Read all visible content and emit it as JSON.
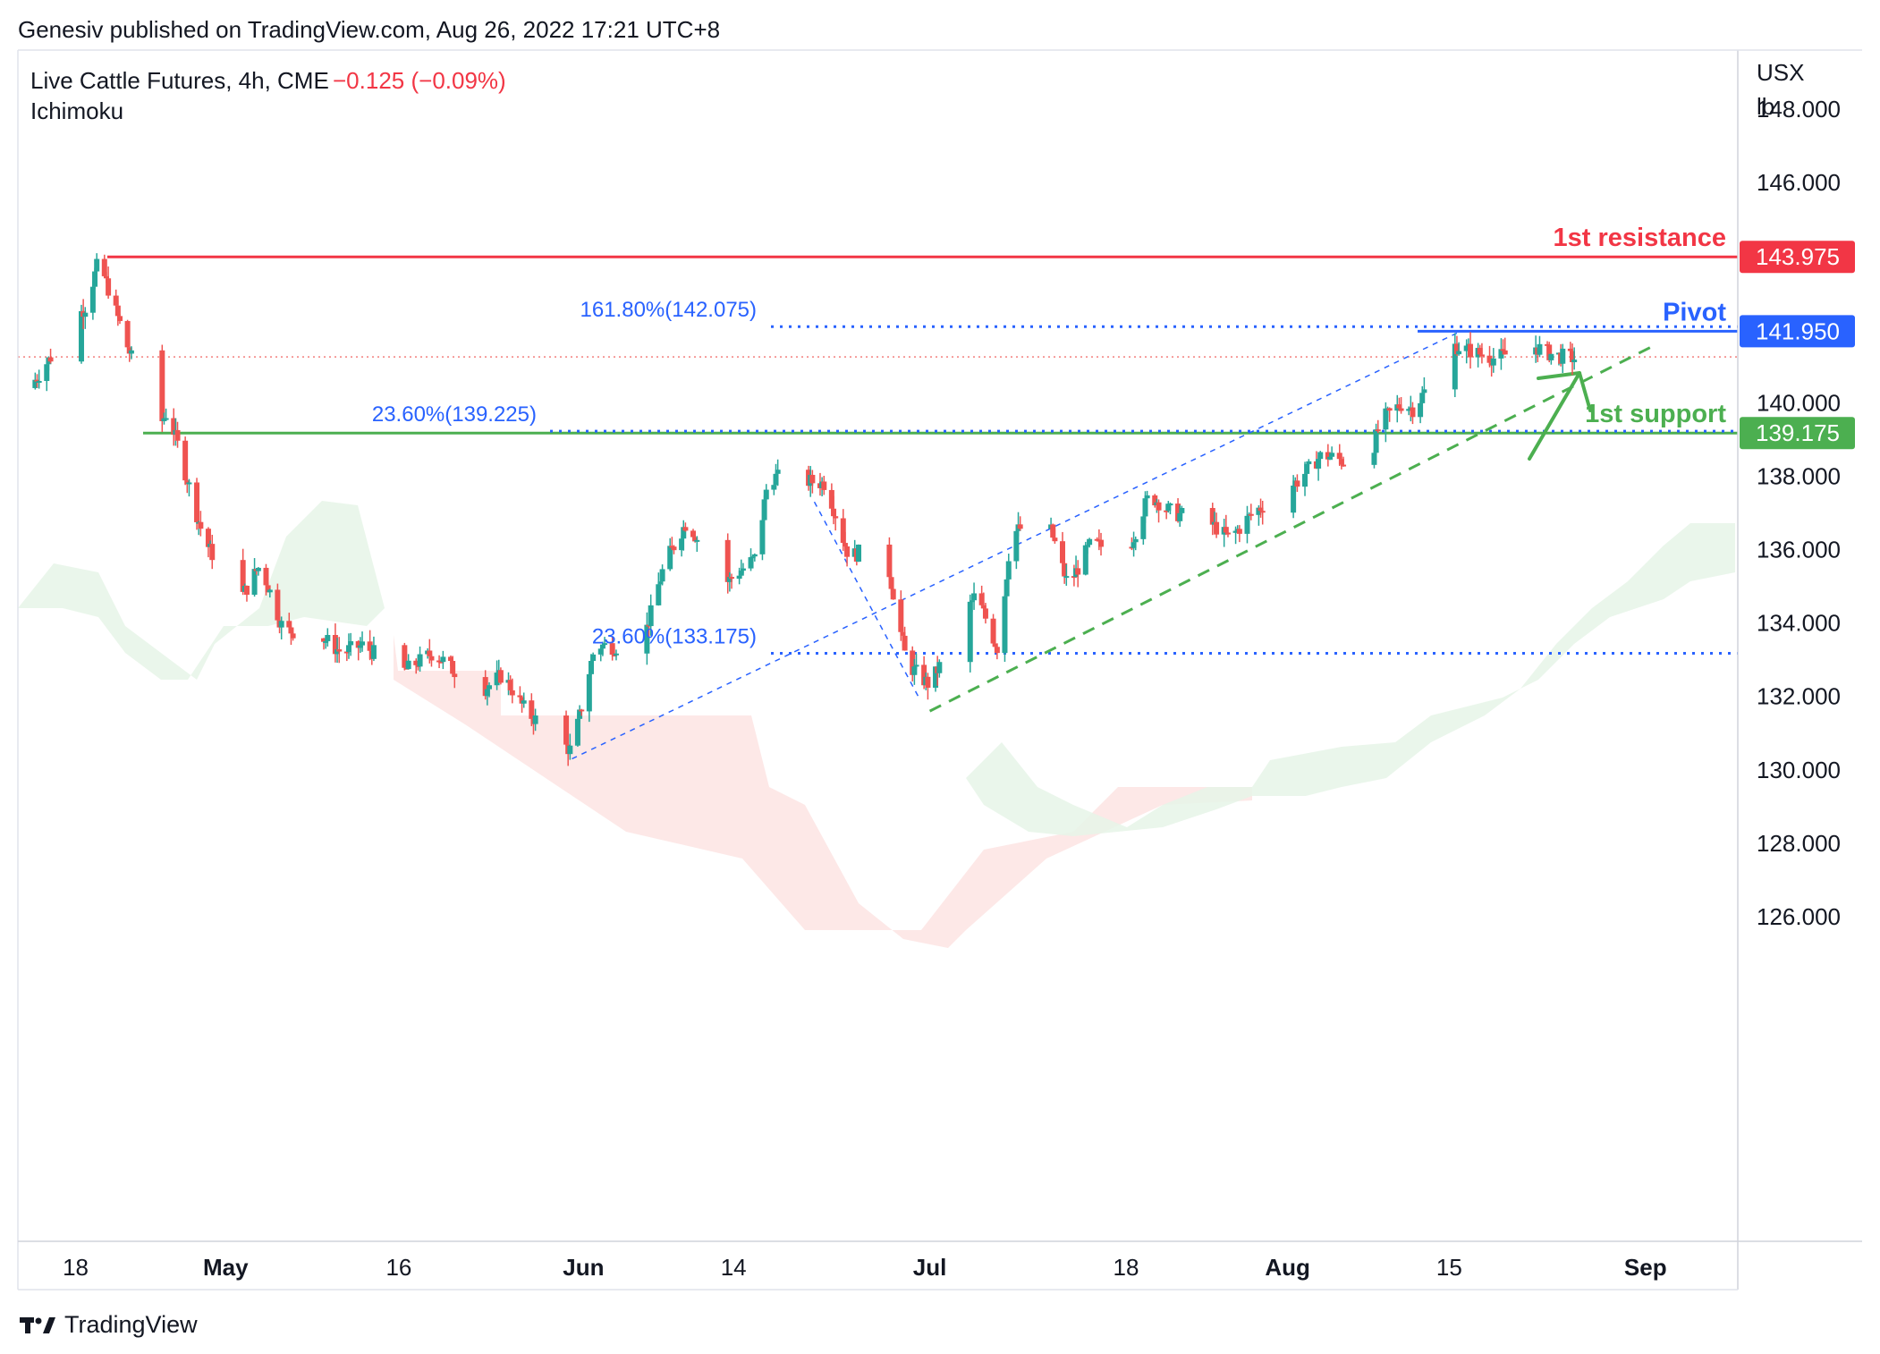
{
  "header": {
    "publisher": "Genesiv published on TradingView.com, Aug 26, 2022 17:21 UTC+8",
    "symbol": "Live Cattle Futures, 4h, CME",
    "change": "−0.125 (−0.09%)",
    "indicator": "Ichimoku"
  },
  "axis": {
    "unit_top": "USX",
    "unit_bottom": "lb",
    "y_ticks": [
      "148.000",
      "146.000",
      "140.000",
      "138.000",
      "136.000",
      "134.000",
      "132.000",
      "130.000",
      "128.000",
      "126.000"
    ],
    "x_ticks": [
      "18",
      "May",
      "16",
      "Jun",
      "14",
      "Jul",
      "18",
      "Aug",
      "15",
      "Sep"
    ]
  },
  "levels": {
    "resistance": {
      "label": "1st resistance",
      "value": "143.975",
      "color": "#f23645"
    },
    "pivot": {
      "label": "Pivot",
      "value": "141.950",
      "color": "#2962ff"
    },
    "support": {
      "label": "1st support",
      "value": "139.175",
      "color": "#4caf50"
    }
  },
  "fib": {
    "f1618": "161.80%(142.075)",
    "f236": "23.60%(139.225)",
    "f2360": "23.60%(133.175)"
  },
  "footer": {
    "brand": "TradingView"
  },
  "chart_data": {
    "type": "candlestick",
    "x_range": [
      "2022-04-13",
      "2022-09-09"
    ],
    "ylim": [
      125.5,
      150.0
    ],
    "colors": {
      "up": "#26a69a",
      "down": "#ef5350"
    },
    "anchors": [
      [
        "2022-04-14",
        140.4
      ],
      [
        "2022-04-19",
        142.7
      ],
      [
        "2022-04-20",
        143.9
      ],
      [
        "2022-04-22",
        142.0
      ],
      [
        "2022-04-25",
        139.2
      ],
      [
        "2022-04-26",
        139.8
      ],
      [
        "2022-04-29",
        136.4
      ],
      [
        "2022-05-02",
        134.5
      ],
      [
        "2022-05-04",
        135.6
      ],
      [
        "2022-05-06",
        133.8
      ],
      [
        "2022-05-09",
        133.7
      ],
      [
        "2022-05-11",
        133.2
      ],
      [
        "2022-05-13",
        133.4
      ],
      [
        "2022-05-16",
        132.6
      ],
      [
        "2022-05-19",
        133.2
      ],
      [
        "2022-05-23",
        132.1
      ],
      [
        "2022-05-25",
        132.6
      ],
      [
        "2022-05-27",
        131.6
      ],
      [
        "2022-05-31",
        130.5
      ],
      [
        "2022-06-02",
        133.4
      ],
      [
        "2022-06-06",
        133.3
      ],
      [
        "2022-06-08",
        135.6
      ],
      [
        "2022-06-10",
        136.8
      ],
      [
        "2022-06-13",
        135.0
      ],
      [
        "2022-06-16",
        135.8
      ],
      [
        "2022-06-17",
        138.0
      ],
      [
        "2022-06-22",
        137.8
      ],
      [
        "2022-06-24",
        135.8
      ],
      [
        "2022-06-27",
        136.2
      ],
      [
        "2022-06-29",
        132.9
      ],
      [
        "2022-07-01",
        132.3
      ],
      [
        "2022-07-05",
        134.8
      ],
      [
        "2022-07-07",
        133.2
      ],
      [
        "2022-07-08",
        136.4
      ],
      [
        "2022-07-11",
        137.0
      ],
      [
        "2022-07-13",
        135.0
      ],
      [
        "2022-07-15",
        136.2
      ],
      [
        "2022-07-18",
        135.8
      ],
      [
        "2022-07-20",
        137.5
      ],
      [
        "2022-07-22",
        137.0
      ],
      [
        "2022-07-25",
        136.8
      ],
      [
        "2022-07-27",
        136.3
      ],
      [
        "2022-07-29",
        137.0
      ],
      [
        "2022-08-02",
        137.9
      ],
      [
        "2022-08-04",
        138.6
      ],
      [
        "2022-08-08",
        138.2
      ],
      [
        "2022-08-09",
        139.5
      ],
      [
        "2022-08-11",
        140.0
      ],
      [
        "2022-08-12",
        139.8
      ],
      [
        "2022-08-15",
        141.6
      ],
      [
        "2022-08-17",
        141.4
      ],
      [
        "2022-08-19",
        141.2
      ],
      [
        "2022-08-22",
        141.6
      ],
      [
        "2022-08-24",
        141.3
      ],
      [
        "2022-08-26",
        141.2
      ]
    ],
    "lines": {
      "resistance": 143.975,
      "pivot": 141.95,
      "support": 139.175,
      "current": 141.25,
      "fib_1618": 142.075,
      "fib_236_a": 139.225,
      "fib_236_b": 133.175
    }
  }
}
